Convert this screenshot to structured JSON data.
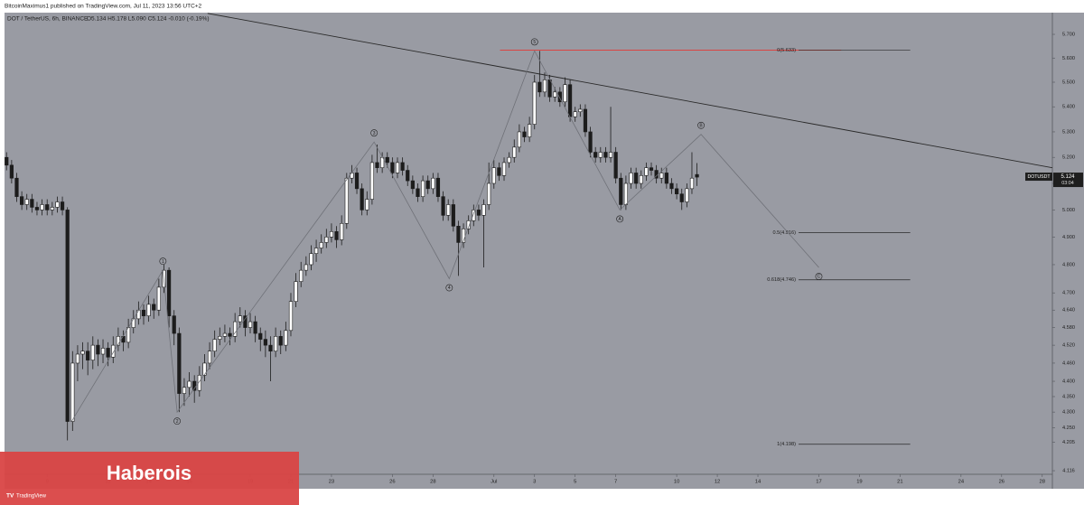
{
  "header": "BitcoinMaximus1 published on TradingView.com, Jul 11, 2023 13:56 UTC+2",
  "chart_data": {
    "type": "candlestick",
    "title": "DOT / TetherUS, 6h, BINANCE",
    "ohlc_text": "O5.134  H5.178  L5.090  C5.124  -0.010 (-0.19%)",
    "x": [
      7,
      7.25,
      7.5,
      7.75,
      8,
      8.25,
      8.5,
      8.75,
      9,
      9.25,
      9.5,
      9.75,
      10,
      10.25,
      10.5,
      10.75,
      11,
      11.25,
      11.5,
      11.75,
      12,
      12.25,
      12.5,
      12.75,
      13,
      13.25,
      13.5,
      13.75,
      14,
      14.25,
      14.5,
      14.75,
      15,
      15.25,
      15.5,
      15.75,
      16,
      16.25,
      16.5,
      16.75,
      17,
      17.25,
      17.5,
      17.75,
      18,
      18.25,
      18.5,
      18.75,
      19,
      19.25,
      19.5,
      19.75,
      20,
      20.25,
      20.5,
      20.75,
      21,
      21.25,
      21.5,
      21.75,
      22,
      22.25,
      22.5,
      22.75,
      23,
      23.25,
      23.5,
      23.75,
      24,
      24.25,
      24.5,
      24.75,
      25,
      25.25,
      25.5,
      25.75,
      26,
      26.25,
      26.5,
      26.75,
      27,
      27.25,
      27.5,
      27.75,
      28,
      28.25,
      28.5,
      28.75,
      29,
      29.25,
      29.5,
      29.75,
      30,
      30.25,
      30.5,
      30.75,
      31,
      31.25,
      31.5,
      31.75,
      32,
      32.25,
      32.5,
      32.75,
      33,
      33.25,
      33.5,
      33.75,
      34,
      34.25,
      34.5,
      34.75,
      35,
      35.25,
      35.5,
      35.75,
      36,
      36.25,
      36.5,
      36.75,
      37,
      37.25,
      37.5,
      37.75,
      38,
      38.25,
      38.5,
      38.75,
      39,
      39.25,
      39.5,
      39.75,
      40,
      40.25,
      40.5,
      40.75,
      41
    ],
    "ohlc": [
      [
        5.2,
        5.22,
        5.15,
        5.17
      ],
      [
        5.17,
        5.19,
        5.1,
        5.12
      ],
      [
        5.12,
        5.14,
        5.03,
        5.05
      ],
      [
        5.05,
        5.07,
        5.0,
        5.02
      ],
      [
        5.02,
        5.06,
        5.0,
        5.04
      ],
      [
        5.04,
        5.06,
        4.99,
        5.01
      ],
      [
        5.01,
        5.03,
        4.98,
        5.0
      ],
      [
        5.0,
        5.04,
        4.98,
        5.02
      ],
      [
        5.02,
        5.04,
        4.98,
        5.0
      ],
      [
        5.0,
        5.03,
        4.98,
        5.01
      ],
      [
        5.01,
        5.05,
        4.99,
        5.03
      ],
      [
        5.03,
        5.05,
        4.98,
        5.0
      ],
      [
        5.0,
        5.01,
        4.21,
        4.27
      ],
      [
        4.27,
        4.5,
        4.24,
        4.46
      ],
      [
        4.46,
        4.52,
        4.4,
        4.49
      ],
      [
        4.49,
        4.53,
        4.44,
        4.5
      ],
      [
        4.5,
        4.53,
        4.42,
        4.47
      ],
      [
        4.47,
        4.55,
        4.44,
        4.52
      ],
      [
        4.52,
        4.54,
        4.45,
        4.49
      ],
      [
        4.49,
        4.54,
        4.46,
        4.51
      ],
      [
        4.51,
        4.53,
        4.45,
        4.48
      ],
      [
        4.48,
        4.55,
        4.46,
        4.52
      ],
      [
        4.52,
        4.58,
        4.5,
        4.55
      ],
      [
        4.55,
        4.57,
        4.5,
        4.53
      ],
      [
        4.53,
        4.61,
        4.51,
        4.58
      ],
      [
        4.58,
        4.64,
        4.56,
        4.61
      ],
      [
        4.61,
        4.67,
        4.59,
        4.64
      ],
      [
        4.64,
        4.66,
        4.59,
        4.62
      ],
      [
        4.62,
        4.69,
        4.6,
        4.66
      ],
      [
        4.66,
        4.68,
        4.61,
        4.64
      ],
      [
        4.64,
        4.75,
        4.62,
        4.72
      ],
      [
        4.72,
        4.8,
        4.7,
        4.78
      ],
      [
        4.78,
        4.79,
        4.58,
        4.62
      ],
      [
        4.62,
        4.64,
        4.52,
        4.56
      ],
      [
        4.56,
        4.58,
        4.3,
        4.36
      ],
      [
        4.36,
        4.41,
        4.32,
        4.38
      ],
      [
        4.38,
        4.43,
        4.35,
        4.4
      ],
      [
        4.4,
        4.42,
        4.33,
        4.37
      ],
      [
        4.37,
        4.45,
        4.35,
        4.42
      ],
      [
        4.42,
        4.49,
        4.4,
        4.46
      ],
      [
        4.46,
        4.53,
        4.44,
        4.5
      ],
      [
        4.5,
        4.57,
        4.48,
        4.54
      ],
      [
        4.54,
        4.58,
        4.52,
        4.55
      ],
      [
        4.55,
        4.59,
        4.53,
        4.56
      ],
      [
        4.56,
        4.58,
        4.52,
        4.55
      ],
      [
        4.55,
        4.63,
        4.53,
        4.6
      ],
      [
        4.6,
        4.65,
        4.58,
        4.62
      ],
      [
        4.62,
        4.64,
        4.55,
        4.58
      ],
      [
        4.58,
        4.63,
        4.56,
        4.6
      ],
      [
        4.6,
        4.62,
        4.53,
        4.56
      ],
      [
        4.56,
        4.58,
        4.5,
        4.54
      ],
      [
        4.54,
        4.57,
        4.48,
        4.52
      ],
      [
        4.52,
        4.55,
        4.4,
        4.5
      ],
      [
        4.5,
        4.58,
        4.48,
        4.55
      ],
      [
        4.55,
        4.57,
        4.49,
        4.52
      ],
      [
        4.52,
        4.6,
        4.5,
        4.57
      ],
      [
        4.57,
        4.7,
        4.55,
        4.67
      ],
      [
        4.67,
        4.77,
        4.65,
        4.74
      ],
      [
        4.74,
        4.81,
        4.72,
        4.78
      ],
      [
        4.78,
        4.83,
        4.76,
        4.8
      ],
      [
        4.8,
        4.87,
        4.78,
        4.84
      ],
      [
        4.84,
        4.89,
        4.81,
        4.86
      ],
      [
        4.86,
        4.91,
        4.84,
        4.88
      ],
      [
        4.88,
        4.93,
        4.86,
        4.9
      ],
      [
        4.9,
        4.95,
        4.88,
        4.92
      ],
      [
        4.92,
        4.94,
        4.86,
        4.89
      ],
      [
        4.89,
        4.98,
        4.87,
        4.95
      ],
      [
        4.95,
        5.14,
        4.93,
        5.12
      ],
      [
        5.12,
        5.17,
        5.1,
        5.14
      ],
      [
        5.14,
        5.16,
        5.06,
        5.08
      ],
      [
        5.08,
        5.1,
        4.98,
        5.0
      ],
      [
        5.0,
        5.07,
        4.98,
        5.04
      ],
      [
        5.04,
        5.21,
        5.02,
        5.18
      ],
      [
        5.18,
        5.25,
        5.14,
        5.16
      ],
      [
        5.16,
        5.22,
        5.14,
        5.2
      ],
      [
        5.2,
        5.22,
        5.16,
        5.18
      ],
      [
        5.18,
        5.2,
        5.12,
        5.14
      ],
      [
        5.14,
        5.2,
        5.12,
        5.18
      ],
      [
        5.18,
        5.2,
        5.13,
        5.15
      ],
      [
        5.15,
        5.17,
        5.09,
        5.11
      ],
      [
        5.11,
        5.13,
        5.06,
        5.08
      ],
      [
        5.08,
        5.1,
        5.03,
        5.05
      ],
      [
        5.05,
        5.13,
        5.03,
        5.11
      ],
      [
        5.11,
        5.13,
        5.06,
        5.08
      ],
      [
        5.08,
        5.14,
        5.06,
        5.12
      ],
      [
        5.12,
        5.14,
        5.03,
        5.05
      ],
      [
        5.05,
        5.07,
        4.96,
        4.98
      ],
      [
        4.98,
        5.04,
        4.96,
        5.02
      ],
      [
        5.02,
        5.04,
        4.92,
        4.94
      ],
      [
        4.94,
        4.96,
        4.76,
        4.88
      ],
      [
        4.88,
        4.95,
        4.86,
        4.93
      ],
      [
        4.93,
        4.98,
        4.91,
        4.96
      ],
      [
        4.96,
        5.02,
        4.94,
        5.0
      ],
      [
        5.0,
        5.02,
        4.96,
        4.98
      ],
      [
        4.98,
        5.04,
        4.79,
        5.02
      ],
      [
        5.02,
        5.18,
        5.0,
        5.1
      ],
      [
        5.1,
        5.19,
        5.08,
        5.16
      ],
      [
        5.16,
        5.18,
        5.11,
        5.13
      ],
      [
        5.13,
        5.2,
        5.11,
        5.18
      ],
      [
        5.18,
        5.22,
        5.16,
        5.2
      ],
      [
        5.2,
        5.27,
        5.18,
        5.24
      ],
      [
        5.24,
        5.33,
        5.22,
        5.3
      ],
      [
        5.3,
        5.32,
        5.26,
        5.28
      ],
      [
        5.28,
        5.36,
        5.26,
        5.33
      ],
      [
        5.33,
        5.53,
        5.31,
        5.5
      ],
      [
        5.5,
        5.63,
        5.44,
        5.46
      ],
      [
        5.46,
        5.54,
        5.44,
        5.51
      ],
      [
        5.51,
        5.53,
        5.42,
        5.44
      ],
      [
        5.44,
        5.48,
        5.42,
        5.46
      ],
      [
        5.46,
        5.48,
        5.4,
        5.42
      ],
      [
        5.42,
        5.52,
        5.4,
        5.49
      ],
      [
        5.49,
        5.51,
        5.34,
        5.36
      ],
      [
        5.36,
        5.4,
        5.34,
        5.38
      ],
      [
        5.38,
        5.41,
        5.36,
        5.39
      ],
      [
        5.39,
        5.41,
        5.28,
        5.3
      ],
      [
        5.3,
        5.32,
        5.2,
        5.22
      ],
      [
        5.22,
        5.24,
        5.18,
        5.2
      ],
      [
        5.2,
        5.24,
        5.18,
        5.22
      ],
      [
        5.22,
        5.24,
        5.18,
        5.2
      ],
      [
        5.2,
        5.4,
        5.18,
        5.22
      ],
      [
        5.22,
        5.24,
        5.1,
        5.12
      ],
      [
        5.12,
        5.14,
        5.0,
        5.02
      ],
      [
        5.02,
        5.13,
        5.0,
        5.1
      ],
      [
        5.1,
        5.16,
        5.08,
        5.14
      ],
      [
        5.14,
        5.16,
        5.08,
        5.1
      ],
      [
        5.1,
        5.15,
        5.08,
        5.13
      ],
      [
        5.13,
        5.18,
        5.11,
        5.16
      ],
      [
        5.16,
        5.18,
        5.13,
        5.15
      ],
      [
        5.15,
        5.17,
        5.1,
        5.12
      ],
      [
        5.12,
        5.16,
        5.1,
        5.14
      ],
      [
        5.14,
        5.16,
        5.08,
        5.1
      ],
      [
        5.1,
        5.12,
        5.06,
        5.08
      ],
      [
        5.08,
        5.1,
        5.04,
        5.06
      ],
      [
        5.06,
        5.08,
        5.0,
        5.03
      ],
      [
        5.03,
        5.1,
        5.01,
        5.08
      ],
      [
        5.08,
        5.22,
        5.06,
        5.12
      ],
      [
        5.134,
        5.178,
        5.09,
        5.124
      ]
    ],
    "up_color": "#ffffff",
    "down_color": "#1c1c1c",
    "xlim": [
      6.9,
      58.5
    ],
    "xticks": [
      9,
      12,
      14,
      16,
      19,
      21,
      23,
      26,
      28,
      {
        "value": 31,
        "label": "Jul"
      },
      {
        "value": 33,
        "label": "3"
      },
      {
        "value": 35,
        "label": "5"
      },
      {
        "value": 37,
        "label": "7"
      },
      {
        "value": 40,
        "label": "10"
      },
      {
        "value": 42,
        "label": "12"
      },
      {
        "value": 44,
        "label": "14"
      },
      {
        "value": 47,
        "label": "17"
      },
      {
        "value": 49,
        "label": "19"
      },
      {
        "value": 51,
        "label": "21"
      },
      {
        "value": 54,
        "label": "24"
      },
      {
        "value": 56,
        "label": "26"
      },
      {
        "value": 58,
        "label": "28"
      }
    ],
    "ylim": [
      4.105,
      5.793
    ],
    "log_y": true,
    "grid": false,
    "yticks": [
      {
        "value": 5.7,
        "label": "5.700"
      },
      {
        "value": 5.6,
        "label": "5.600"
      },
      {
        "value": 5.5,
        "label": "5.500"
      },
      {
        "value": 5.4,
        "label": "5.400"
      },
      {
        "value": 5.3,
        "label": "5.300"
      },
      {
        "value": 5.2,
        "label": "5.200"
      },
      {
        "value": 5.1,
        "label": "5.100"
      },
      {
        "value": 5.0,
        "label": "5.000"
      },
      {
        "value": 4.9,
        "label": "4.900"
      },
      {
        "value": 4.8,
        "label": "4.800"
      },
      {
        "value": 4.7,
        "label": "4.700"
      },
      {
        "value": 4.64,
        "label": "4.640"
      },
      {
        "value": 4.58,
        "label": "4.580"
      },
      {
        "value": 4.52,
        "label": "4.520"
      },
      {
        "value": 4.46,
        "label": "4.460"
      },
      {
        "value": 4.4,
        "label": "4.400"
      },
      {
        "value": 4.35,
        "label": "4.350"
      },
      {
        "value": 4.3,
        "label": "4.300"
      },
      {
        "value": 4.25,
        "label": "4.250"
      },
      4.205,
      4.116
    ],
    "trendline": {
      "x": [
        16.9,
        58.5
      ],
      "y": [
        5.79,
        5.16
      ],
      "color": "#2a2a2a"
    },
    "waves": {
      "x": [
        10.2,
        14.7,
        15.4,
        25.1,
        28.8,
        33.0,
        37.2,
        41.2,
        47.0
      ],
      "y": [
        4.27,
        4.78,
        4.3,
        5.26,
        4.75,
        5.63,
        5.0,
        5.29,
        4.79
      ],
      "labels": [
        null,
        "1",
        "2",
        "3",
        "4",
        "5",
        "A",
        "B",
        "C"
      ],
      "color": "#6f7178"
    },
    "resistance": {
      "value": 5.633,
      "x": [
        31.3,
        48.1
      ],
      "color": "#e53935"
    },
    "fib_x": [
      46.0,
      51.5
    ],
    "fib_levels": [
      {
        "label": "0(5.633)",
        "value": 5.633
      },
      {
        "label": "0.5(4.916)",
        "value": 4.916
      },
      {
        "label": "0.618(4.746)",
        "value": 4.746
      },
      {
        "label": "1(4.198)",
        "value": 4.198
      }
    ],
    "last_price": {
      "symbol": "DOTUSDT",
      "label": "5.124",
      "value": 5.124,
      "countdown": "03:04"
    }
  },
  "watermark": "Haberois",
  "brand": "TradingView"
}
